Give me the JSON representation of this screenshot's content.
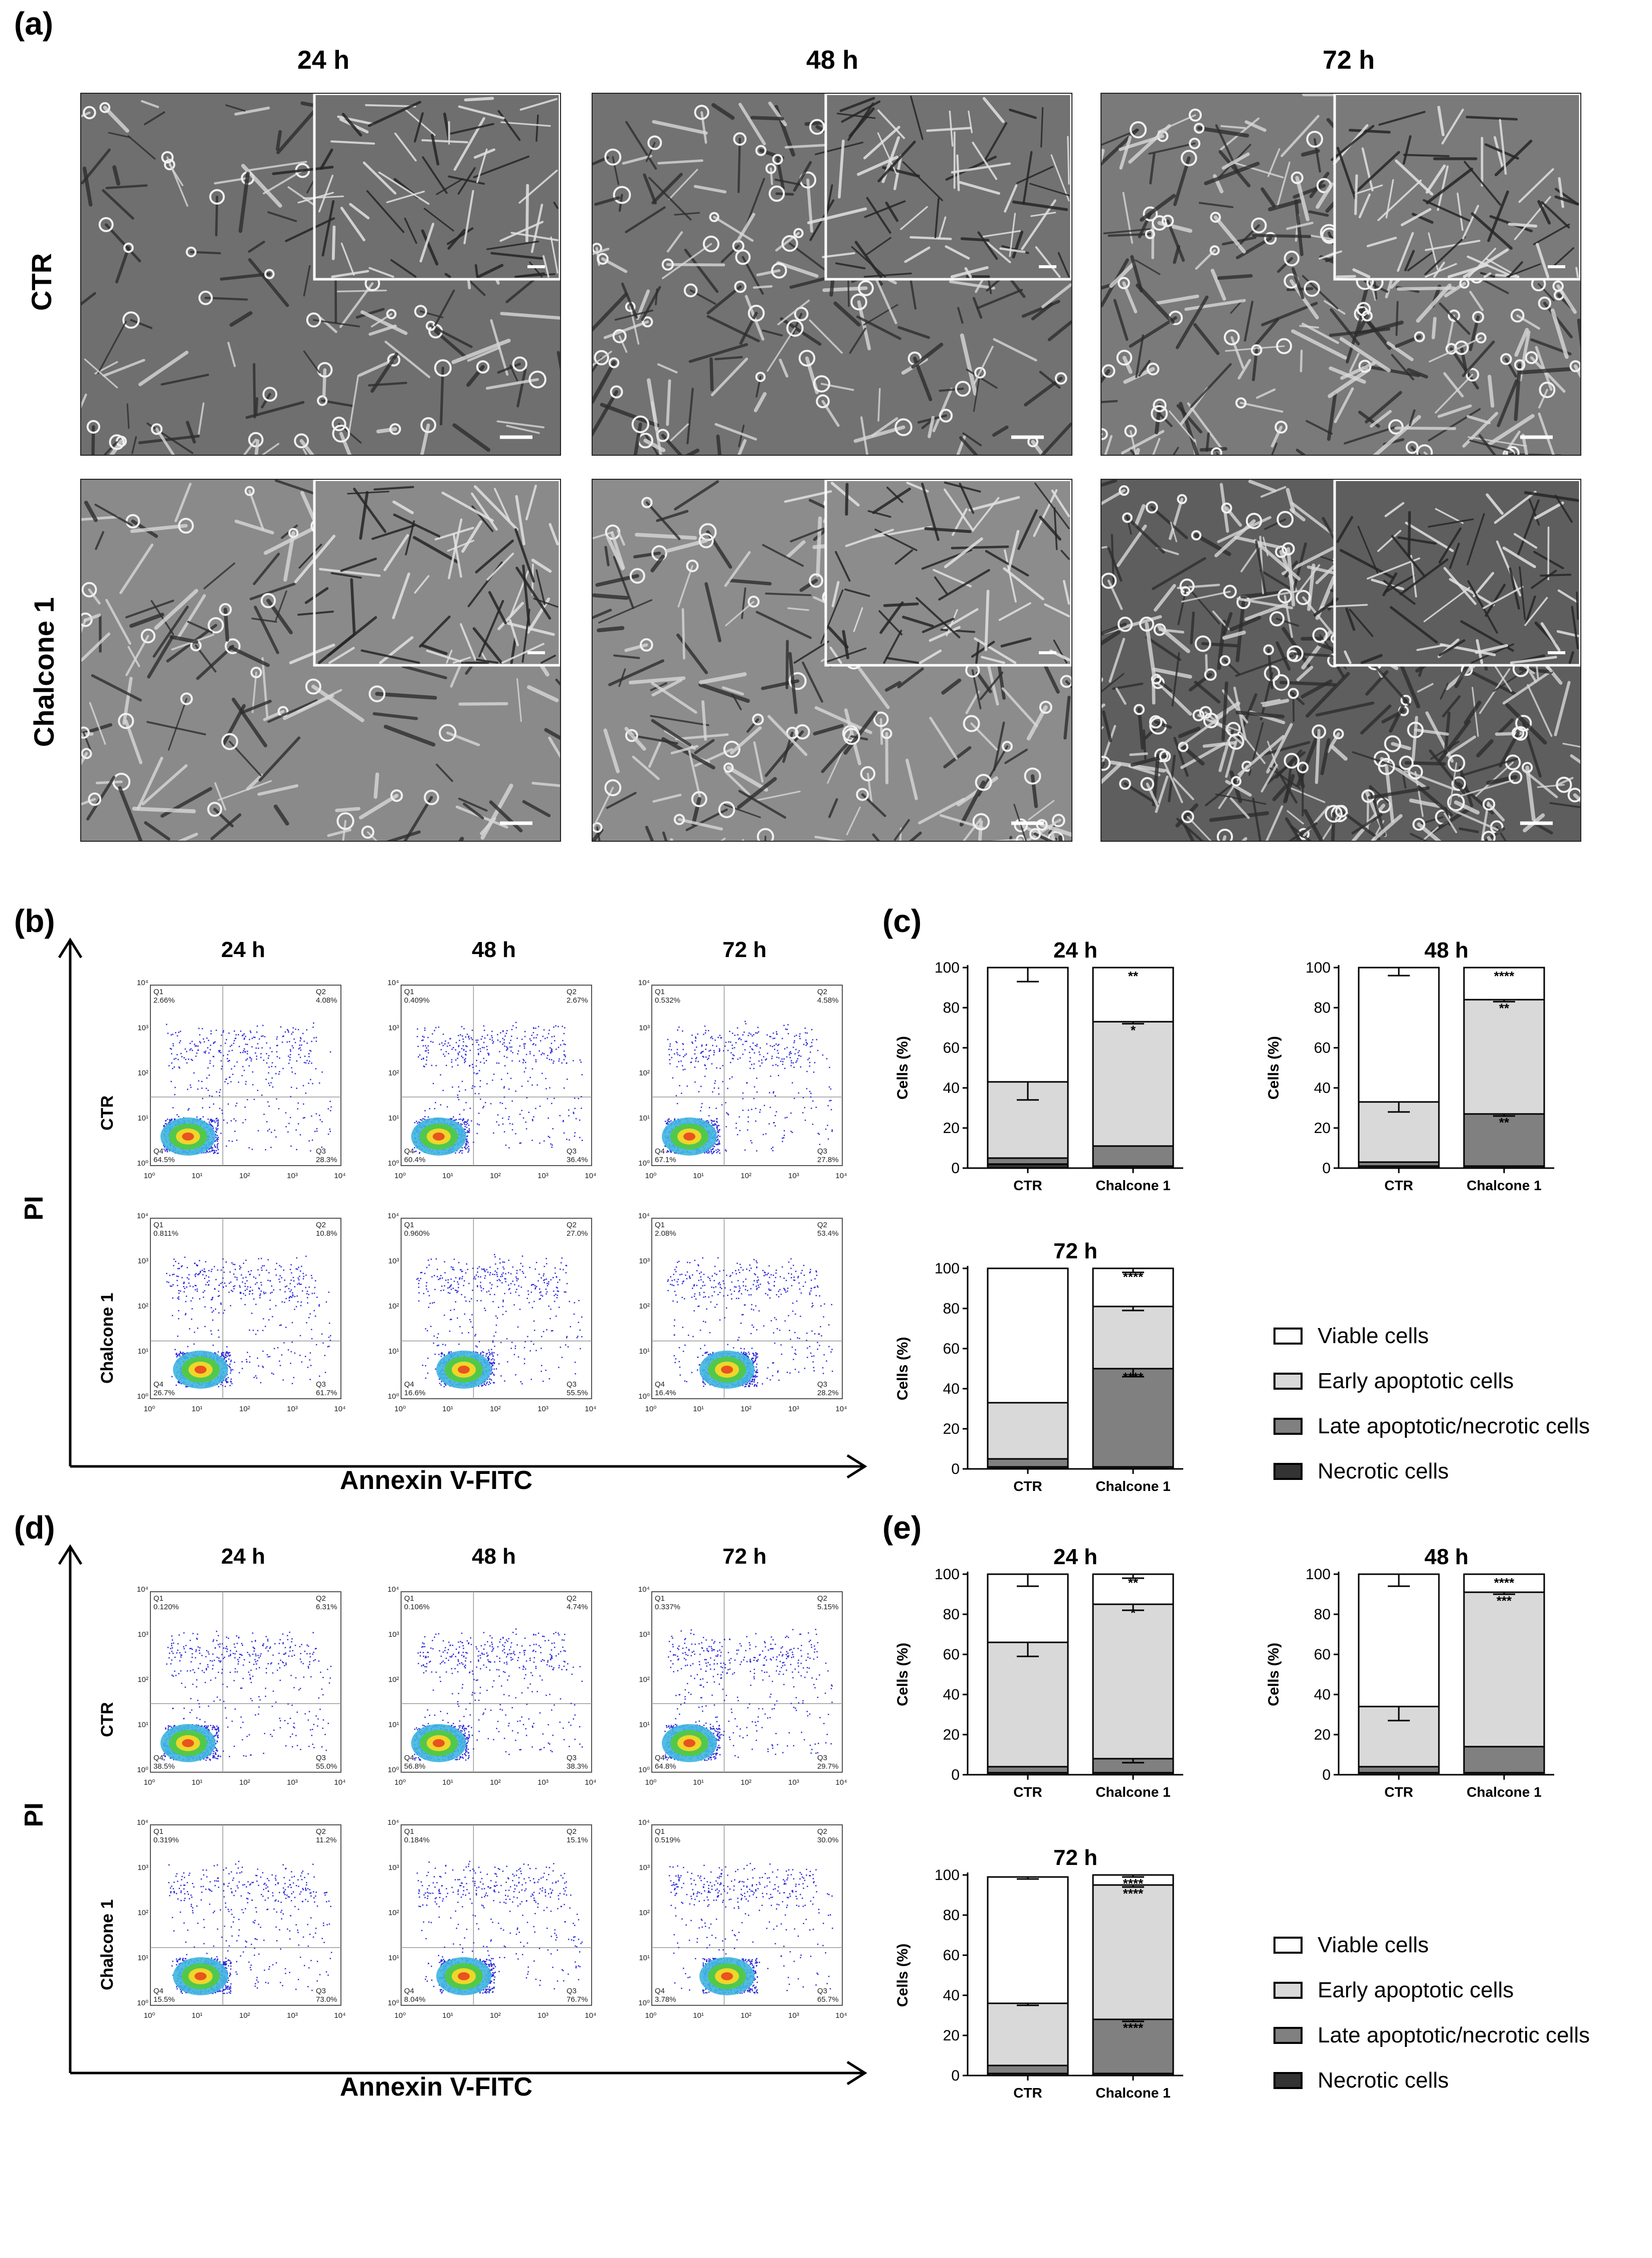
{
  "panel_a": {
    "letter": "(a)",
    "col_headers": [
      "24 h",
      "48 h",
      "72 h"
    ],
    "row_headers": [
      "CTR",
      "Chalcone 1"
    ]
  },
  "panel_b": {
    "letter": "(b)",
    "col_headers": [
      "24 h",
      "48 h",
      "72 h"
    ],
    "row_headers": [
      "CTR",
      "Chalcone 1"
    ],
    "y_axis_title": "PI",
    "x_axis_title": "Annexin V-FITC",
    "quadrant_labels": [
      "Q1",
      "Q2",
      "Q3",
      "Q4"
    ],
    "tick_labels": [
      "10⁰",
      "10¹",
      "10²",
      "10³",
      "10⁴"
    ],
    "plots": [
      {
        "q1": "2.66%",
        "q2": "4.08%",
        "q3": "28.3%",
        "q4": "64.5%"
      },
      {
        "q1": "0.409%",
        "q2": "2.67%",
        "q3": "36.4%",
        "q4": "60.4%"
      },
      {
        "q1": "0.532%",
        "q2": "4.58%",
        "q3": "27.8%",
        "q4": "67.1%"
      },
      {
        "q1": "0.811%",
        "q2": "10.8%",
        "q3": "61.7%",
        "q4": "26.7%"
      },
      {
        "q1": "0.960%",
        "q2": "27.0%",
        "q3": "55.5%",
        "q4": "16.6%"
      },
      {
        "q1": "2.08%",
        "q2": "53.4%",
        "q3": "28.2%",
        "q4": "16.4%"
      }
    ]
  },
  "panel_d": {
    "letter": "(d)",
    "col_headers": [
      "24 h",
      "48 h",
      "72 h"
    ],
    "row_headers": [
      "CTR",
      "Chalcone 1"
    ],
    "y_axis_title": "PI",
    "x_axis_title": "Annexin V-FITC",
    "quadrant_labels": [
      "Q1",
      "Q2",
      "Q3",
      "Q4"
    ],
    "tick_labels": [
      "10⁰",
      "10¹",
      "10²",
      "10³",
      "10⁴"
    ],
    "plots": [
      {
        "q1": "0.120%",
        "q2": "6.31%",
        "q3": "55.0%",
        "q4": "38.5%"
      },
      {
        "q1": "0.106%",
        "q2": "4.74%",
        "q3": "38.3%",
        "q4": "56.8%"
      },
      {
        "q1": "0.337%",
        "q2": "5.15%",
        "q3": "29.7%",
        "q4": "64.8%"
      },
      {
        "q1": "0.319%",
        "q2": "11.2%",
        "q3": "73.0%",
        "q4": "15.5%"
      },
      {
        "q1": "0.184%",
        "q2": "15.1%",
        "q3": "76.7%",
        "q4": "8.04%"
      },
      {
        "q1": "0.519%",
        "q2": "30.0%",
        "q3": "65.7%",
        "q4": "3.78%"
      }
    ]
  },
  "panel_c": {
    "letter": "(c)"
  },
  "panel_e": {
    "letter": "(e)"
  },
  "legend": {
    "items": [
      "Viable cells",
      "Early apoptotic cells",
      "Late apoptotic/necrotic cells",
      "Necrotic cells"
    ],
    "colors": [
      "#ffffff",
      "#d9d9d9",
      "#808080",
      "#333333"
    ]
  },
  "chart_data": [
    {
      "panel": "(c)",
      "type": "bar",
      "stacked": true,
      "title": "24 h",
      "ylabel": "Cells (%)",
      "ylim": [
        0,
        100
      ],
      "yticks": [
        0,
        20,
        40,
        60,
        80,
        100
      ],
      "categories": [
        "CTR",
        "Chalcone 1"
      ],
      "series": [
        {
          "name": "Necrotic cells",
          "values": [
            2,
            1
          ],
          "err": [
            0,
            0
          ]
        },
        {
          "name": "Late apoptotic/necrotic cells",
          "values": [
            3,
            10
          ],
          "err": [
            0,
            0
          ]
        },
        {
          "name": "Early apoptotic cells",
          "values": [
            38,
            62
          ],
          "err": [
            9,
            1
          ]
        },
        {
          "name": "Viable cells",
          "values": [
            57,
            27
          ],
          "err": [
            7,
            0
          ]
        }
      ],
      "annotations": [
        {
          "category": "Chalcone 1",
          "segment": 3,
          "text": "**"
        },
        {
          "category": "Chalcone 1",
          "segment": 2,
          "text": "*"
        }
      ]
    },
    {
      "panel": "(c)",
      "type": "bar",
      "stacked": true,
      "title": "48 h",
      "ylabel": "Cells (%)",
      "ylim": [
        0,
        100
      ],
      "yticks": [
        0,
        20,
        40,
        60,
        80,
        100
      ],
      "categories": [
        "CTR",
        "Chalcone 1"
      ],
      "series": [
        {
          "name": "Necrotic cells",
          "values": [
            1,
            1
          ],
          "err": [
            0,
            0
          ]
        },
        {
          "name": "Late apoptotic/necrotic cells",
          "values": [
            2,
            26
          ],
          "err": [
            0,
            1
          ]
        },
        {
          "name": "Early apoptotic cells",
          "values": [
            30,
            57
          ],
          "err": [
            5,
            1
          ]
        },
        {
          "name": "Viable cells",
          "values": [
            67,
            16
          ],
          "err": [
            4,
            0
          ]
        }
      ],
      "annotations": [
        {
          "category": "Chalcone 1",
          "segment": 3,
          "text": "****"
        },
        {
          "category": "Chalcone 1",
          "segment": 2,
          "text": "**"
        },
        {
          "category": "Chalcone 1",
          "segment": 1,
          "text": "**"
        }
      ]
    },
    {
      "panel": "(c)",
      "type": "bar",
      "stacked": true,
      "title": "72 h",
      "ylabel": "Cells (%)",
      "ylim": [
        0,
        100
      ],
      "yticks": [
        0,
        20,
        40,
        60,
        80,
        100
      ],
      "categories": [
        "CTR",
        "Chalcone 1"
      ],
      "series": [
        {
          "name": "Necrotic cells",
          "values": [
            1,
            1
          ],
          "err": [
            0,
            0
          ]
        },
        {
          "name": "Late apoptotic/necrotic cells",
          "values": [
            4,
            49
          ],
          "err": [
            0,
            4
          ]
        },
        {
          "name": "Early apoptotic cells",
          "values": [
            28,
            31
          ],
          "err": [
            0,
            2
          ]
        },
        {
          "name": "Viable cells",
          "values": [
            67,
            19
          ],
          "err": [
            0,
            2
          ]
        }
      ],
      "annotations": [
        {
          "category": "Chalcone 1",
          "segment": 3,
          "text": "****"
        },
        {
          "category": "Chalcone 1",
          "segment": 1,
          "text": "****"
        }
      ]
    },
    {
      "panel": "(e)",
      "type": "bar",
      "stacked": true,
      "title": "24 h",
      "ylabel": "Cells (%)",
      "ylim": [
        0,
        100
      ],
      "yticks": [
        0,
        20,
        40,
        60,
        80,
        100
      ],
      "categories": [
        "CTR",
        "Chalcone 1"
      ],
      "series": [
        {
          "name": "Necrotic cells",
          "values": [
            1,
            1
          ],
          "err": [
            0,
            0
          ]
        },
        {
          "name": "Late apoptotic/necrotic cells",
          "values": [
            3,
            7
          ],
          "err": [
            0,
            2
          ]
        },
        {
          "name": "Early apoptotic cells",
          "values": [
            62,
            77
          ],
          "err": [
            7,
            3
          ]
        },
        {
          "name": "Viable cells",
          "values": [
            34,
            15
          ],
          "err": [
            6,
            2
          ]
        }
      ],
      "annotations": [
        {
          "category": "Chalcone 1",
          "segment": 3,
          "text": "**"
        },
        {
          "category": "Chalcone 1",
          "segment": 2,
          "text": "*"
        }
      ]
    },
    {
      "panel": "(e)",
      "type": "bar",
      "stacked": true,
      "title": "48 h",
      "ylabel": "Cells (%)",
      "ylim": [
        0,
        100
      ],
      "yticks": [
        0,
        20,
        40,
        60,
        80,
        100
      ],
      "categories": [
        "CTR",
        "Chalcone 1"
      ],
      "series": [
        {
          "name": "Necrotic cells",
          "values": [
            1,
            1
          ],
          "err": [
            0,
            0
          ]
        },
        {
          "name": "Late apoptotic/necrotic cells",
          "values": [
            3,
            13
          ],
          "err": [
            0,
            0
          ]
        },
        {
          "name": "Early apoptotic cells",
          "values": [
            30,
            77
          ],
          "err": [
            7,
            1
          ]
        },
        {
          "name": "Viable cells",
          "values": [
            66,
            9
          ],
          "err": [
            6,
            0
          ]
        }
      ],
      "annotations": [
        {
          "category": "Chalcone 1",
          "segment": 3,
          "text": "****"
        },
        {
          "category": "Chalcone 1",
          "segment": 2,
          "text": "***"
        }
      ]
    },
    {
      "panel": "(e)",
      "type": "bar",
      "stacked": true,
      "title": "72 h",
      "ylabel": "Cells (%)",
      "ylim": [
        0,
        100
      ],
      "yticks": [
        0,
        20,
        40,
        60,
        80,
        100
      ],
      "categories": [
        "CTR",
        "Chalcone 1"
      ],
      "series": [
        {
          "name": "Necrotic cells",
          "values": [
            1,
            1
          ],
          "err": [
            0,
            0
          ]
        },
        {
          "name": "Late apoptotic/necrotic cells",
          "values": [
            4,
            27
          ],
          "err": [
            0,
            1
          ]
        },
        {
          "name": "Early apoptotic cells",
          "values": [
            31,
            67
          ],
          "err": [
            1,
            1
          ]
        },
        {
          "name": "Viable cells",
          "values": [
            63,
            5
          ],
          "err": [
            1,
            1
          ]
        }
      ],
      "annotations": [
        {
          "category": "Chalcone 1",
          "segment": 3,
          "text": "****"
        },
        {
          "category": "Chalcone 1",
          "segment": 2,
          "text": "****"
        },
        {
          "category": "Chalcone 1",
          "segment": 1,
          "text": "****"
        }
      ]
    }
  ]
}
